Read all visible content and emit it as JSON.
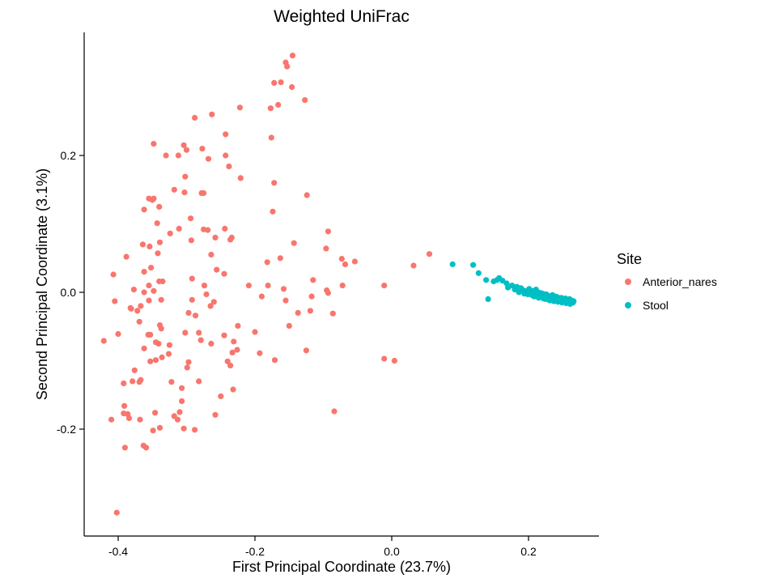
{
  "chart_data": {
    "type": "scatter",
    "title": "Weighted UniFrac",
    "xlabel": "First Principal Coordinate (23.7%)",
    "ylabel": "Second Principal Coordinate (3.1%)",
    "xlim": [
      -0.42,
      0.27
    ],
    "ylim": [
      -0.33,
      0.35
    ],
    "xticks": [
      -0.4,
      -0.2,
      0.0,
      0.2
    ],
    "xtick_labels": [
      "-0.4",
      "-0.2",
      "0.0",
      "0.2"
    ],
    "yticks": [
      -0.2,
      0.0,
      0.2
    ],
    "ytick_labels": [
      "-0.2",
      "0.0",
      "0.2"
    ],
    "grid": false,
    "legend": {
      "title": "Site",
      "position": "right"
    },
    "series": [
      {
        "name": "Anterior_nares",
        "color": "#F8766D",
        "points": [
          [
            -0.145,
            0.346
          ],
          [
            -0.155,
            0.336
          ],
          [
            -0.153,
            0.33
          ],
          [
            -0.162,
            0.307
          ],
          [
            -0.172,
            0.306
          ],
          [
            -0.146,
            0.3
          ],
          [
            -0.127,
            0.281
          ],
          [
            -0.166,
            0.274
          ],
          [
            -0.222,
            0.27
          ],
          [
            -0.177,
            0.269
          ],
          [
            -0.263,
            0.26
          ],
          [
            -0.288,
            0.255
          ],
          [
            -0.243,
            0.231
          ],
          [
            -0.176,
            0.226
          ],
          [
            -0.348,
            0.217
          ],
          [
            -0.304,
            0.215
          ],
          [
            -0.3,
            0.208
          ],
          [
            -0.277,
            0.21
          ],
          [
            -0.33,
            0.2
          ],
          [
            -0.312,
            0.2
          ],
          [
            -0.243,
            0.2
          ],
          [
            -0.268,
            0.195
          ],
          [
            -0.238,
            0.184
          ],
          [
            -0.302,
            0.169
          ],
          [
            -0.221,
            0.167
          ],
          [
            -0.172,
            0.16
          ],
          [
            -0.318,
            0.15
          ],
          [
            -0.303,
            0.146
          ],
          [
            -0.275,
            0.145
          ],
          [
            -0.278,
            0.145
          ],
          [
            -0.124,
            0.142
          ],
          [
            -0.355,
            0.137
          ],
          [
            -0.35,
            0.135
          ],
          [
            -0.348,
            0.137
          ],
          [
            -0.34,
            0.125
          ],
          [
            -0.362,
            0.121
          ],
          [
            -0.174,
            0.118
          ],
          [
            -0.294,
            0.108
          ],
          [
            -0.343,
            0.101
          ],
          [
            -0.244,
            0.093
          ],
          [
            -0.311,
            0.093
          ],
          [
            -0.269,
            0.091
          ],
          [
            -0.258,
            0.08
          ],
          [
            -0.324,
            0.086
          ],
          [
            -0.234,
            0.08
          ],
          [
            -0.275,
            0.092
          ],
          [
            -0.339,
            0.073
          ],
          [
            -0.293,
            0.076
          ],
          [
            -0.236,
            0.077
          ],
          [
            -0.364,
            0.07
          ],
          [
            -0.354,
            0.067
          ],
          [
            -0.143,
            0.072
          ],
          [
            -0.093,
            0.089
          ],
          [
            -0.096,
            0.064
          ],
          [
            -0.342,
            0.057
          ],
          [
            -0.388,
            0.052
          ],
          [
            -0.264,
            0.055
          ],
          [
            -0.163,
            0.05
          ],
          [
            -0.073,
            0.049
          ],
          [
            -0.068,
            0.041
          ],
          [
            -0.182,
            0.044
          ],
          [
            -0.352,
            0.036
          ],
          [
            -0.362,
            0.03
          ],
          [
            -0.256,
            0.033
          ],
          [
            -0.407,
            0.026
          ],
          [
            -0.34,
            0.016
          ],
          [
            -0.335,
            0.016
          ],
          [
            -0.292,
            0.02
          ],
          [
            -0.245,
            0.027
          ],
          [
            -0.115,
            0.018
          ],
          [
            -0.072,
            0.01
          ],
          [
            -0.355,
            0.01
          ],
          [
            -0.348,
            0.002
          ],
          [
            -0.362,
            0.0
          ],
          [
            -0.377,
            0.004
          ],
          [
            -0.274,
            0.01
          ],
          [
            -0.209,
            0.01
          ],
          [
            -0.181,
            0.01
          ],
          [
            -0.158,
            0.005
          ],
          [
            -0.093,
            -0.001
          ],
          [
            -0.095,
            0.003
          ],
          [
            -0.117,
            -0.006
          ],
          [
            -0.19,
            -0.006
          ],
          [
            -0.271,
            -0.003
          ],
          [
            -0.292,
            -0.011
          ],
          [
            -0.337,
            -0.011
          ],
          [
            -0.355,
            -0.012
          ],
          [
            -0.405,
            -0.013
          ],
          [
            -0.382,
            -0.023
          ],
          [
            -0.367,
            -0.02
          ],
          [
            -0.265,
            -0.02
          ],
          [
            -0.26,
            -0.014
          ],
          [
            -0.155,
            -0.012
          ],
          [
            -0.119,
            -0.027
          ],
          [
            -0.137,
            -0.03
          ],
          [
            -0.086,
            -0.031
          ],
          [
            -0.297,
            -0.03
          ],
          [
            -0.287,
            -0.034
          ],
          [
            -0.372,
            -0.027
          ],
          [
            -0.381,
            -0.024
          ],
          [
            -0.15,
            -0.049
          ],
          [
            -0.225,
            -0.049
          ],
          [
            -0.339,
            -0.048
          ],
          [
            -0.337,
            -0.053
          ],
          [
            -0.369,
            -0.043
          ],
          [
            -0.4,
            -0.061
          ],
          [
            -0.356,
            -0.062
          ],
          [
            -0.282,
            -0.059
          ],
          [
            -0.302,
            -0.059
          ],
          [
            -0.245,
            -0.063
          ],
          [
            -0.2,
            -0.058
          ],
          [
            -0.421,
            -0.071
          ],
          [
            -0.353,
            -0.062
          ],
          [
            -0.345,
            -0.073
          ],
          [
            -0.341,
            -0.075
          ],
          [
            -0.325,
            -0.077
          ],
          [
            -0.264,
            -0.075
          ],
          [
            -0.279,
            -0.07
          ],
          [
            -0.231,
            -0.072
          ],
          [
            -0.362,
            -0.082
          ],
          [
            -0.226,
            -0.084
          ],
          [
            -0.125,
            -0.085
          ],
          [
            -0.193,
            -0.089
          ],
          [
            -0.233,
            -0.088
          ],
          [
            -0.326,
            -0.09
          ],
          [
            -0.336,
            -0.095
          ],
          [
            -0.345,
            -0.099
          ],
          [
            -0.353,
            -0.101
          ],
          [
            -0.24,
            -0.101
          ],
          [
            -0.236,
            -0.107
          ],
          [
            -0.297,
            -0.102
          ],
          [
            -0.299,
            -0.11
          ],
          [
            -0.171,
            -0.099
          ],
          [
            -0.011,
            -0.097
          ],
          [
            0.004,
            -0.1
          ],
          [
            -0.376,
            -0.114
          ],
          [
            -0.379,
            -0.13
          ],
          [
            -0.392,
            -0.133
          ],
          [
            -0.367,
            -0.128
          ],
          [
            -0.369,
            -0.131
          ],
          [
            -0.322,
            -0.131
          ],
          [
            -0.282,
            -0.13
          ],
          [
            -0.307,
            -0.14
          ],
          [
            -0.232,
            -0.142
          ],
          [
            -0.25,
            -0.152
          ],
          [
            -0.307,
            -0.159
          ],
          [
            -0.391,
            -0.166
          ],
          [
            -0.392,
            -0.177
          ],
          [
            -0.386,
            -0.178
          ],
          [
            -0.384,
            -0.184
          ],
          [
            -0.41,
            -0.186
          ],
          [
            -0.368,
            -0.186
          ],
          [
            -0.346,
            -0.176
          ],
          [
            -0.31,
            -0.175
          ],
          [
            -0.318,
            -0.181
          ],
          [
            -0.258,
            -0.179
          ],
          [
            -0.084,
            -0.174
          ],
          [
            -0.313,
            -0.186
          ],
          [
            -0.339,
            -0.198
          ],
          [
            -0.349,
            -0.202
          ],
          [
            -0.304,
            -0.199
          ],
          [
            -0.288,
            -0.201
          ],
          [
            -0.363,
            -0.224
          ],
          [
            -0.359,
            -0.227
          ],
          [
            -0.39,
            -0.227
          ],
          [
            -0.402,
            -0.322
          ],
          [
            -0.054,
            0.045
          ],
          [
            -0.011,
            0.01
          ],
          [
            0.032,
            0.039
          ],
          [
            0.055,
            0.056
          ]
        ]
      },
      {
        "name": "Stool",
        "color": "#00BFC4",
        "points": [
          [
            0.089,
            0.041
          ],
          [
            0.119,
            0.04
          ],
          [
            0.141,
            -0.01
          ],
          [
            0.127,
            0.028
          ],
          [
            0.138,
            0.018
          ],
          [
            0.149,
            0.016
          ],
          [
            0.154,
            0.018
          ],
          [
            0.157,
            0.021
          ],
          [
            0.162,
            0.017
          ],
          [
            0.168,
            0.013
          ],
          [
            0.17,
            0.007
          ],
          [
            0.176,
            0.01
          ],
          [
            0.18,
            0.004
          ],
          [
            0.183,
            0.008
          ],
          [
            0.186,
            0.0
          ],
          [
            0.189,
            0.006
          ],
          [
            0.192,
            0.003
          ],
          [
            0.194,
            -0.002
          ],
          [
            0.197,
            0.001
          ],
          [
            0.199,
            -0.003
          ],
          [
            0.201,
            0.005
          ],
          [
            0.203,
            0.0
          ],
          [
            0.205,
            -0.004
          ],
          [
            0.207,
            0.002
          ],
          [
            0.209,
            -0.003
          ],
          [
            0.211,
            0.004
          ],
          [
            0.212,
            -0.006
          ],
          [
            0.214,
            0.0
          ],
          [
            0.216,
            -0.004
          ],
          [
            0.218,
            -0.001
          ],
          [
            0.219,
            -0.007
          ],
          [
            0.221,
            -0.002
          ],
          [
            0.223,
            -0.005
          ],
          [
            0.224,
            -0.009
          ],
          [
            0.226,
            -0.003
          ],
          [
            0.227,
            -0.007
          ],
          [
            0.229,
            -0.005
          ],
          [
            0.23,
            -0.01
          ],
          [
            0.232,
            -0.006
          ],
          [
            0.233,
            -0.008
          ],
          [
            0.235,
            -0.004
          ],
          [
            0.236,
            -0.011
          ],
          [
            0.238,
            -0.008
          ],
          [
            0.239,
            -0.006
          ],
          [
            0.241,
            -0.01
          ],
          [
            0.242,
            -0.007
          ],
          [
            0.244,
            -0.012
          ],
          [
            0.245,
            -0.009
          ],
          [
            0.247,
            -0.011
          ],
          [
            0.248,
            -0.008
          ],
          [
            0.25,
            -0.013
          ],
          [
            0.251,
            -0.01
          ],
          [
            0.253,
            -0.012
          ],
          [
            0.254,
            -0.009
          ],
          [
            0.256,
            -0.014
          ],
          [
            0.257,
            -0.011
          ],
          [
            0.259,
            -0.013
          ],
          [
            0.26,
            -0.01
          ],
          [
            0.262,
            -0.014
          ],
          [
            0.263,
            -0.012
          ],
          [
            0.265,
            -0.015
          ],
          [
            0.266,
            -0.013
          ],
          [
            0.225,
            -0.01
          ],
          [
            0.231,
            -0.012
          ],
          [
            0.237,
            -0.013
          ],
          [
            0.243,
            -0.014
          ],
          [
            0.249,
            -0.015
          ],
          [
            0.255,
            -0.016
          ],
          [
            0.261,
            -0.017
          ],
          [
            0.215,
            -0.008
          ],
          [
            0.208,
            -0.006
          ],
          [
            0.2,
            -0.002
          ],
          [
            0.195,
            0.002
          ],
          [
            0.185,
            0.005
          ],
          [
            0.222,
            -0.009
          ]
        ]
      }
    ]
  }
}
